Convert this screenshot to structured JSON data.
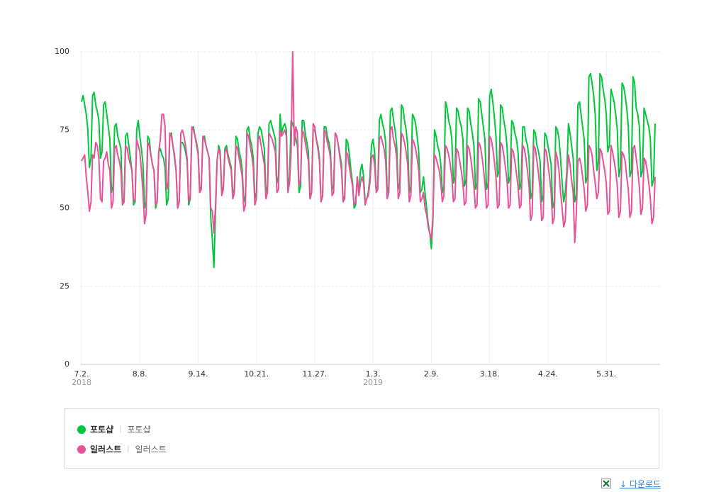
{
  "chart_data": {
    "type": "line",
    "x": [
      "2018-07-02",
      "2018-07-03",
      "2018-07-04",
      "2018-07-05",
      "2018-07-06",
      "2018-07-07",
      "2018-07-08",
      "2018-07-09",
      "2018-07-10",
      "2018-07-11",
      "2018-07-12",
      "2018-07-13",
      "2018-07-14",
      "2018-07-15",
      "2018-07-16",
      "2018-07-17",
      "2018-07-18",
      "2018-07-19",
      "2018-07-20",
      "2018-07-21",
      "2018-07-22",
      "2018-07-23",
      "2018-07-24",
      "2018-07-25",
      "2018-07-26",
      "2018-07-27",
      "2018-07-28",
      "2018-07-29",
      "2018-07-30",
      "2018-07-31",
      "2018-08-01",
      "2018-08-02",
      "2018-08-03",
      "2018-08-04",
      "2018-08-05",
      "2018-08-06",
      "2018-08-07",
      "2018-08-08",
      "2018-08-09",
      "2018-08-10",
      "2018-08-11",
      "2018-08-12",
      "2018-08-13",
      "2018-08-14",
      "2018-08-15",
      "2018-08-16",
      "2018-08-17",
      "2018-08-18",
      "2018-08-19",
      "2018-08-20",
      "2018-08-21",
      "2018-08-22",
      "2018-08-23",
      "2018-08-24",
      "2018-08-25",
      "2018-08-26",
      "2018-08-27",
      "2018-08-28",
      "2018-08-29",
      "2018-08-30",
      "2018-08-31",
      "2018-09-01",
      "2018-09-02",
      "2018-09-03",
      "2018-09-04",
      "2018-09-05",
      "2018-09-06",
      "2018-09-07",
      "2018-09-08",
      "2018-09-09",
      "2018-09-10",
      "2018-09-11",
      "2018-09-12",
      "2018-09-13",
      "2018-09-14",
      "2018-09-15",
      "2018-09-16",
      "2018-09-17",
      "2018-09-18",
      "2018-09-19",
      "2018-09-20",
      "2018-09-21",
      "2018-09-22",
      "2018-09-23",
      "2018-09-24",
      "2018-09-25",
      "2018-09-26",
      "2018-09-27",
      "2018-09-28",
      "2018-09-29",
      "2018-09-30",
      "2018-10-01",
      "2018-10-02",
      "2018-10-03",
      "2018-10-04",
      "2018-10-05",
      "2018-10-06",
      "2018-10-07",
      "2018-10-08",
      "2018-10-09",
      "2018-10-10",
      "2018-10-11",
      "2018-10-12",
      "2018-10-13",
      "2018-10-14",
      "2018-10-15",
      "2018-10-16",
      "2018-10-17",
      "2018-10-18",
      "2018-10-19",
      "2018-10-20",
      "2018-10-21",
      "2018-10-22",
      "2018-10-23",
      "2018-10-24",
      "2018-10-25",
      "2018-10-26",
      "2018-10-27",
      "2018-10-28",
      "2018-10-29",
      "2018-10-30",
      "2018-10-31",
      "2018-11-01",
      "2018-11-02",
      "2018-11-03",
      "2018-11-04",
      "2018-11-05",
      "2018-11-06",
      "2018-11-07",
      "2018-11-08",
      "2018-11-09",
      "2018-11-10",
      "2018-11-11",
      "2018-11-12",
      "2018-11-13",
      "2018-11-14",
      "2018-11-15",
      "2018-11-16",
      "2018-11-17",
      "2018-11-18",
      "2018-11-19",
      "2018-11-20",
      "2018-11-21",
      "2018-11-22",
      "2018-11-23",
      "2018-11-24",
      "2018-11-25",
      "2018-11-26",
      "2018-11-27",
      "2018-11-28",
      "2018-11-29",
      "2018-11-30",
      "2018-12-01",
      "2018-12-02",
      "2018-12-03",
      "2018-12-04",
      "2018-12-05",
      "2018-12-06",
      "2018-12-07",
      "2018-12-08",
      "2018-12-09",
      "2018-12-10",
      "2018-12-11",
      "2018-12-12",
      "2018-12-13",
      "2018-12-14",
      "2018-12-15",
      "2018-12-16",
      "2018-12-17",
      "2018-12-18",
      "2018-12-19",
      "2018-12-20",
      "2018-12-21",
      "2018-12-22",
      "2018-12-23",
      "2018-12-24",
      "2018-12-25",
      "2018-12-26",
      "2018-12-27",
      "2018-12-28",
      "2018-12-29",
      "2018-12-30",
      "2018-12-31",
      "2019-01-01",
      "2019-01-02",
      "2019-01-03",
      "2019-01-04",
      "2019-01-05",
      "2019-01-06",
      "2019-01-07",
      "2019-01-08",
      "2019-01-09",
      "2019-01-10",
      "2019-01-11",
      "2019-01-12",
      "2019-01-13",
      "2019-01-14",
      "2019-01-15",
      "2019-01-16",
      "2019-01-17",
      "2019-01-18",
      "2019-01-19",
      "2019-01-20",
      "2019-01-21",
      "2019-01-22",
      "2019-01-23",
      "2019-01-24",
      "2019-01-25",
      "2019-01-26",
      "2019-01-27",
      "2019-01-28",
      "2019-01-29",
      "2019-01-30",
      "2019-01-31",
      "2019-02-01",
      "2019-02-02",
      "2019-02-03",
      "2019-02-04",
      "2019-02-05",
      "2019-02-06",
      "2019-02-07",
      "2019-02-08",
      "2019-02-09",
      "2019-02-10",
      "2019-02-11",
      "2019-02-12",
      "2019-02-13",
      "2019-02-14",
      "2019-02-15",
      "2019-02-16",
      "2019-02-17",
      "2019-02-18",
      "2019-02-19",
      "2019-02-20",
      "2019-02-21",
      "2019-02-22",
      "2019-02-23",
      "2019-02-24",
      "2019-02-25",
      "2019-02-26",
      "2019-02-27",
      "2019-02-28",
      "2019-03-01",
      "2019-03-02",
      "2019-03-03",
      "2019-03-04",
      "2019-03-05",
      "2019-03-06",
      "2019-03-07",
      "2019-03-08",
      "2019-03-09",
      "2019-03-10",
      "2019-03-11",
      "2019-03-12",
      "2019-03-13",
      "2019-03-14",
      "2019-03-15",
      "2019-03-16",
      "2019-03-17",
      "2019-03-18",
      "2019-03-19",
      "2019-03-20",
      "2019-03-21",
      "2019-03-22",
      "2019-03-23",
      "2019-03-24",
      "2019-03-25",
      "2019-03-26",
      "2019-03-27",
      "2019-03-28",
      "2019-03-29",
      "2019-03-30",
      "2019-03-31",
      "2019-04-01",
      "2019-04-02",
      "2019-04-03",
      "2019-04-04",
      "2019-04-05",
      "2019-04-06",
      "2019-04-07",
      "2019-04-08",
      "2019-04-09",
      "2019-04-10",
      "2019-04-11",
      "2019-04-12",
      "2019-04-13",
      "2019-04-14",
      "2019-04-15",
      "2019-04-16",
      "2019-04-17",
      "2019-04-18",
      "2019-04-19",
      "2019-04-20",
      "2019-04-21",
      "2019-04-22",
      "2019-04-23",
      "2019-04-24",
      "2019-04-25",
      "2019-04-26",
      "2019-04-27",
      "2019-04-28",
      "2019-04-29",
      "2019-04-30",
      "2019-05-01",
      "2019-05-02",
      "2019-05-03",
      "2019-05-04",
      "2019-05-05",
      "2019-05-06",
      "2019-05-07",
      "2019-05-08",
      "2019-05-09",
      "2019-05-10",
      "2019-05-11",
      "2019-05-12",
      "2019-05-13",
      "2019-05-14",
      "2019-05-15",
      "2019-05-16",
      "2019-05-17",
      "2019-05-18",
      "2019-05-19",
      "2019-05-20",
      "2019-05-21",
      "2019-05-22",
      "2019-05-23",
      "2019-05-24",
      "2019-05-25",
      "2019-05-26",
      "2019-05-27",
      "2019-05-28",
      "2019-05-29",
      "2019-05-30",
      "2019-05-31",
      "2019-06-01",
      "2019-06-02",
      "2019-06-03",
      "2019-06-04",
      "2019-06-05",
      "2019-06-06",
      "2019-06-07",
      "2019-06-08",
      "2019-06-09",
      "2019-06-10",
      "2019-06-11",
      "2019-06-12",
      "2019-06-13",
      "2019-06-14",
      "2019-06-15",
      "2019-06-16",
      "2019-06-17",
      "2019-06-18",
      "2019-06-19",
      "2019-06-20",
      "2019-06-21",
      "2019-06-22",
      "2019-06-23",
      "2019-06-24",
      "2019-06-25",
      "2019-06-26",
      "2019-06-27",
      "2019-06-28",
      "2019-06-29",
      "2019-06-30",
      "2019-07-01"
    ],
    "series": [
      {
        "name": "포토샵",
        "keywords": "포토샵",
        "color": "#00c73c",
        "values": [
          84,
          86,
          83,
          80,
          75,
          63,
          66,
          86,
          87,
          83,
          81,
          78,
          66,
          68,
          83,
          84,
          80,
          76,
          72,
          55,
          57,
          76,
          77,
          73,
          71,
          69,
          52,
          53,
          73,
          74,
          70,
          66,
          62,
          51,
          52,
          75,
          78,
          73,
          69,
          64,
          50,
          52,
          73,
          72,
          67,
          64,
          62,
          50,
          52,
          68,
          69,
          67,
          66,
          63,
          51,
          53,
          73,
          74,
          70,
          66,
          62,
          50,
          52,
          71,
          71,
          70,
          68,
          65,
          51,
          53,
          75,
          76,
          73,
          71,
          68,
          55,
          57,
          72,
          73,
          70,
          68,
          66,
          47,
          40,
          31,
          48,
          65,
          70,
          68,
          55,
          57,
          69,
          70,
          67,
          65,
          63,
          55,
          56,
          73,
          72,
          68,
          66,
          62,
          52,
          54,
          75,
          76,
          72,
          70,
          66,
          53,
          55,
          74,
          76,
          75,
          72,
          69,
          55,
          57,
          77,
          78,
          76,
          74,
          72,
          58,
          60,
          80,
          74,
          76,
          77,
          75,
          57,
          60,
          78,
          77,
          75,
          72,
          70,
          55,
          57,
          78,
          78,
          74,
          71,
          68,
          53,
          55,
          75,
          75,
          72,
          70,
          66,
          52,
          54,
          76,
          76,
          73,
          71,
          68,
          56,
          57,
          74,
          73,
          70,
          67,
          64,
          52,
          54,
          72,
          71,
          67,
          62,
          58,
          50,
          51,
          60,
          55,
          62,
          64,
          60,
          52,
          53,
          55,
          60,
          70,
          72,
          68,
          56,
          57,
          78,
          80,
          77,
          75,
          71,
          55,
          57,
          81,
          82,
          78,
          75,
          70,
          56,
          58,
          83,
          82,
          78,
          75,
          70,
          55,
          57,
          80,
          79,
          77,
          73,
          68,
          55,
          56,
          60,
          55,
          50,
          45,
          42,
          37,
          46,
          75,
          73,
          70,
          68,
          64,
          55,
          57,
          84,
          82,
          78,
          76,
          72,
          58,
          60,
          82,
          81,
          78,
          76,
          72,
          57,
          59,
          82,
          81,
          77,
          74,
          70,
          56,
          58,
          85,
          84,
          80,
          76,
          72,
          56,
          58,
          86,
          88,
          84,
          79,
          73,
          60,
          62,
          83,
          82,
          78,
          75,
          70,
          58,
          60,
          78,
          77,
          74,
          72,
          68,
          56,
          58,
          76,
          76,
          72,
          70,
          66,
          53,
          55,
          75,
          74,
          70,
          68,
          65,
          52,
          54,
          74,
          73,
          70,
          67,
          64,
          50,
          52,
          76,
          75,
          72,
          66,
          58,
          52,
          55,
          62,
          77,
          74,
          70,
          66,
          52,
          54,
          83,
          84,
          80,
          76,
          72,
          58,
          60,
          92,
          93,
          90,
          86,
          80,
          62,
          65,
          93,
          92,
          88,
          85,
          80,
          68,
          70,
          88,
          86,
          84,
          80,
          75,
          60,
          63,
          90,
          89,
          86,
          82,
          76,
          60,
          62,
          92,
          90,
          82,
          80,
          76,
          60,
          62,
          82,
          80,
          78,
          76,
          72,
          57,
          59,
          77
        ]
      },
      {
        "name": "일러스트",
        "keywords": "일러스트",
        "color": "#e8519a",
        "values": [
          65,
          66,
          67,
          60,
          55,
          49,
          52,
          67,
          66,
          71,
          70,
          66,
          53,
          52,
          65,
          66,
          68,
          64,
          62,
          50,
          52,
          69,
          70,
          67,
          65,
          62,
          51,
          52,
          70,
          69,
          66,
          64,
          62,
          52,
          53,
          72,
          70,
          68,
          62,
          55,
          45,
          48,
          71,
          70,
          67,
          64,
          62,
          51,
          52,
          68,
          72,
          80,
          80,
          76,
          56,
          58,
          74,
          73,
          70,
          67,
          62,
          50,
          52,
          74,
          75,
          73,
          70,
          66,
          52,
          54,
          76,
          75,
          73,
          70,
          67,
          55,
          56,
          73,
          72,
          70,
          68,
          66,
          50,
          49,
          42,
          50,
          65,
          69,
          67,
          54,
          56,
          68,
          69,
          66,
          64,
          62,
          53,
          55,
          70,
          69,
          66,
          63,
          60,
          49,
          51,
          74,
          73,
          70,
          67,
          63,
          51,
          53,
          72,
          73,
          70,
          67,
          64,
          53,
          55,
          74,
          73,
          72,
          70,
          68,
          55,
          56,
          75,
          73,
          74,
          75,
          73,
          55,
          58,
          68,
          100,
          70,
          76,
          74,
          57,
          59,
          75,
          74,
          71,
          68,
          65,
          53,
          55,
          77,
          76,
          72,
          69,
          65,
          52,
          54,
          75,
          74,
          71,
          69,
          66,
          54,
          55,
          74,
          73,
          70,
          66,
          62,
          52,
          53,
          68,
          67,
          63,
          60,
          57,
          51,
          52,
          60,
          54,
          58,
          60,
          58,
          51,
          53,
          54,
          58,
          66,
          67,
          64,
          55,
          56,
          72,
          73,
          71,
          69,
          65,
          53,
          55,
          75,
          76,
          72,
          70,
          66,
          53,
          55,
          74,
          73,
          71,
          68,
          64,
          52,
          54,
          72,
          71,
          69,
          66,
          62,
          52,
          53,
          55,
          50,
          48,
          44,
          42,
          40,
          47,
          67,
          66,
          64,
          62,
          58,
          52,
          54,
          70,
          69,
          67,
          64,
          60,
          52,
          53,
          69,
          68,
          65,
          62,
          58,
          51,
          52,
          70,
          69,
          66,
          62,
          57,
          50,
          51,
          71,
          70,
          67,
          63,
          58,
          50,
          51,
          73,
          72,
          69,
          65,
          60,
          50,
          51,
          71,
          70,
          67,
          63,
          59,
          50,
          51,
          69,
          68,
          65,
          61,
          57,
          50,
          51,
          70,
          69,
          66,
          62,
          57,
          46,
          48,
          70,
          69,
          65,
          61,
          56,
          46,
          47,
          69,
          68,
          64,
          60,
          55,
          45,
          47,
          68,
          66,
          62,
          55,
          50,
          44,
          46,
          60,
          67,
          64,
          59,
          55,
          39,
          48,
          65,
          66,
          64,
          60,
          56,
          49,
          51,
          70,
          69,
          67,
          62,
          58,
          53,
          55,
          69,
          68,
          65,
          62,
          58,
          48,
          49,
          70,
          68,
          65,
          62,
          57,
          47,
          49,
          68,
          67,
          65,
          60,
          56,
          47,
          49,
          69,
          70,
          66,
          62,
          57,
          48,
          50,
          66,
          65,
          62,
          58,
          53,
          45,
          47,
          60
        ]
      }
    ],
    "ylim": [
      0,
      100
    ],
    "yticks": [
      0,
      25,
      50,
      75,
      100
    ],
    "grid": true,
    "xticks": [
      {
        "value": "2018-07-02",
        "label": "7.2."
      },
      {
        "value": "2018-08-08",
        "label": "8.8."
      },
      {
        "value": "2018-09-14",
        "label": "9.14."
      },
      {
        "value": "2018-10-21",
        "label": "10.21."
      },
      {
        "value": "2018-11-27",
        "label": "11.27."
      },
      {
        "value": "2019-01-03",
        "label": "1.3."
      },
      {
        "value": "2019-02-09",
        "label": "2.9."
      },
      {
        "value": "2019-03-18",
        "label": "3.18."
      },
      {
        "value": "2019-04-24",
        "label": "4.24."
      },
      {
        "value": "2019-05-31",
        "label": "5.31."
      }
    ],
    "xtick_years": [
      {
        "value": "2018-07-02",
        "label": "2018"
      },
      {
        "value": "2019-01-03",
        "label": "2019"
      }
    ]
  },
  "download": "다운로드"
}
